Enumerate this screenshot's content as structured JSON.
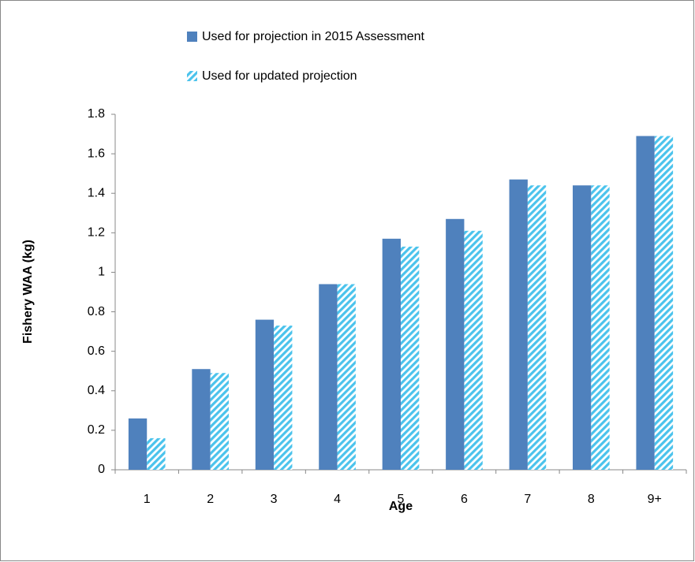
{
  "chart_data": {
    "type": "bar",
    "x_label": "Age",
    "y_label": "Fishery WAA (kg)",
    "categories": [
      "1",
      "2",
      "3",
      "4",
      "5",
      "6",
      "7",
      "8",
      "9+"
    ],
    "series": [
      {
        "name": "Used for projection in 2015 Assessment",
        "color": "#4f81bd",
        "values": [
          0.26,
          0.51,
          0.76,
          0.94,
          1.17,
          1.27,
          1.47,
          1.44,
          1.69
        ]
      },
      {
        "name": "Used for updated projection",
        "color": "#4bc3ec",
        "hatch": true,
        "values": [
          0.16,
          0.49,
          0.73,
          0.94,
          1.13,
          1.21,
          1.44,
          1.44,
          1.69
        ]
      }
    ],
    "ylim": [
      0,
      1.8
    ],
    "yticks": [
      0,
      0.2,
      0.4,
      0.6,
      0.8,
      1,
      1.2,
      1.4,
      1.6,
      1.8
    ],
    "grid": false,
    "legend": "top"
  }
}
